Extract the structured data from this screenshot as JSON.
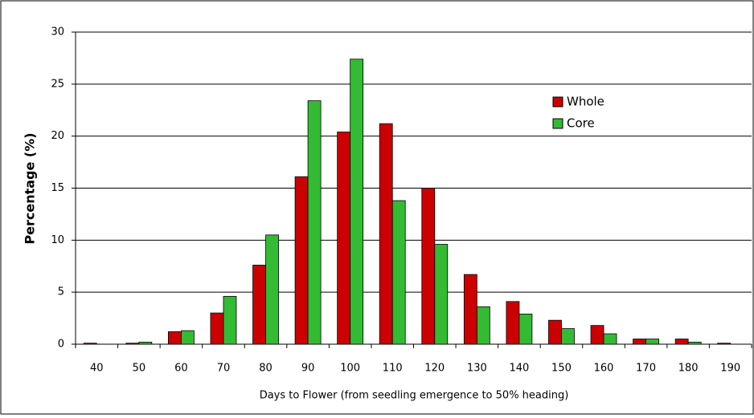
{
  "chart_data": {
    "type": "bar",
    "x_label": "Days to Flower (from seedling emergence to 50% heading)",
    "y_label": "Percentage (%)",
    "categories": [
      "40",
      "50",
      "60",
      "70",
      "80",
      "90",
      "100",
      "110",
      "120",
      "130",
      "140",
      "150",
      "160",
      "170",
      "180",
      "190"
    ],
    "series": [
      {
        "name": "Whole",
        "color": "#cc0000",
        "values": [
          0.1,
          0.1,
          1.2,
          3.0,
          7.6,
          16.1,
          20.4,
          21.2,
          15.0,
          6.7,
          4.1,
          2.3,
          1.8,
          0.5,
          0.5,
          0.1
        ]
      },
      {
        "name": "Core",
        "color": "#33bb33",
        "values": [
          0,
          0.2,
          1.3,
          4.6,
          10.5,
          23.4,
          27.4,
          13.8,
          9.6,
          3.6,
          2.9,
          1.5,
          1.0,
          0.5,
          0.2,
          0
        ]
      }
    ],
    "ylim": [
      0,
      30
    ],
    "yticks": [
      0,
      5,
      10,
      15,
      20,
      25,
      30
    ],
    "grid": true
  }
}
